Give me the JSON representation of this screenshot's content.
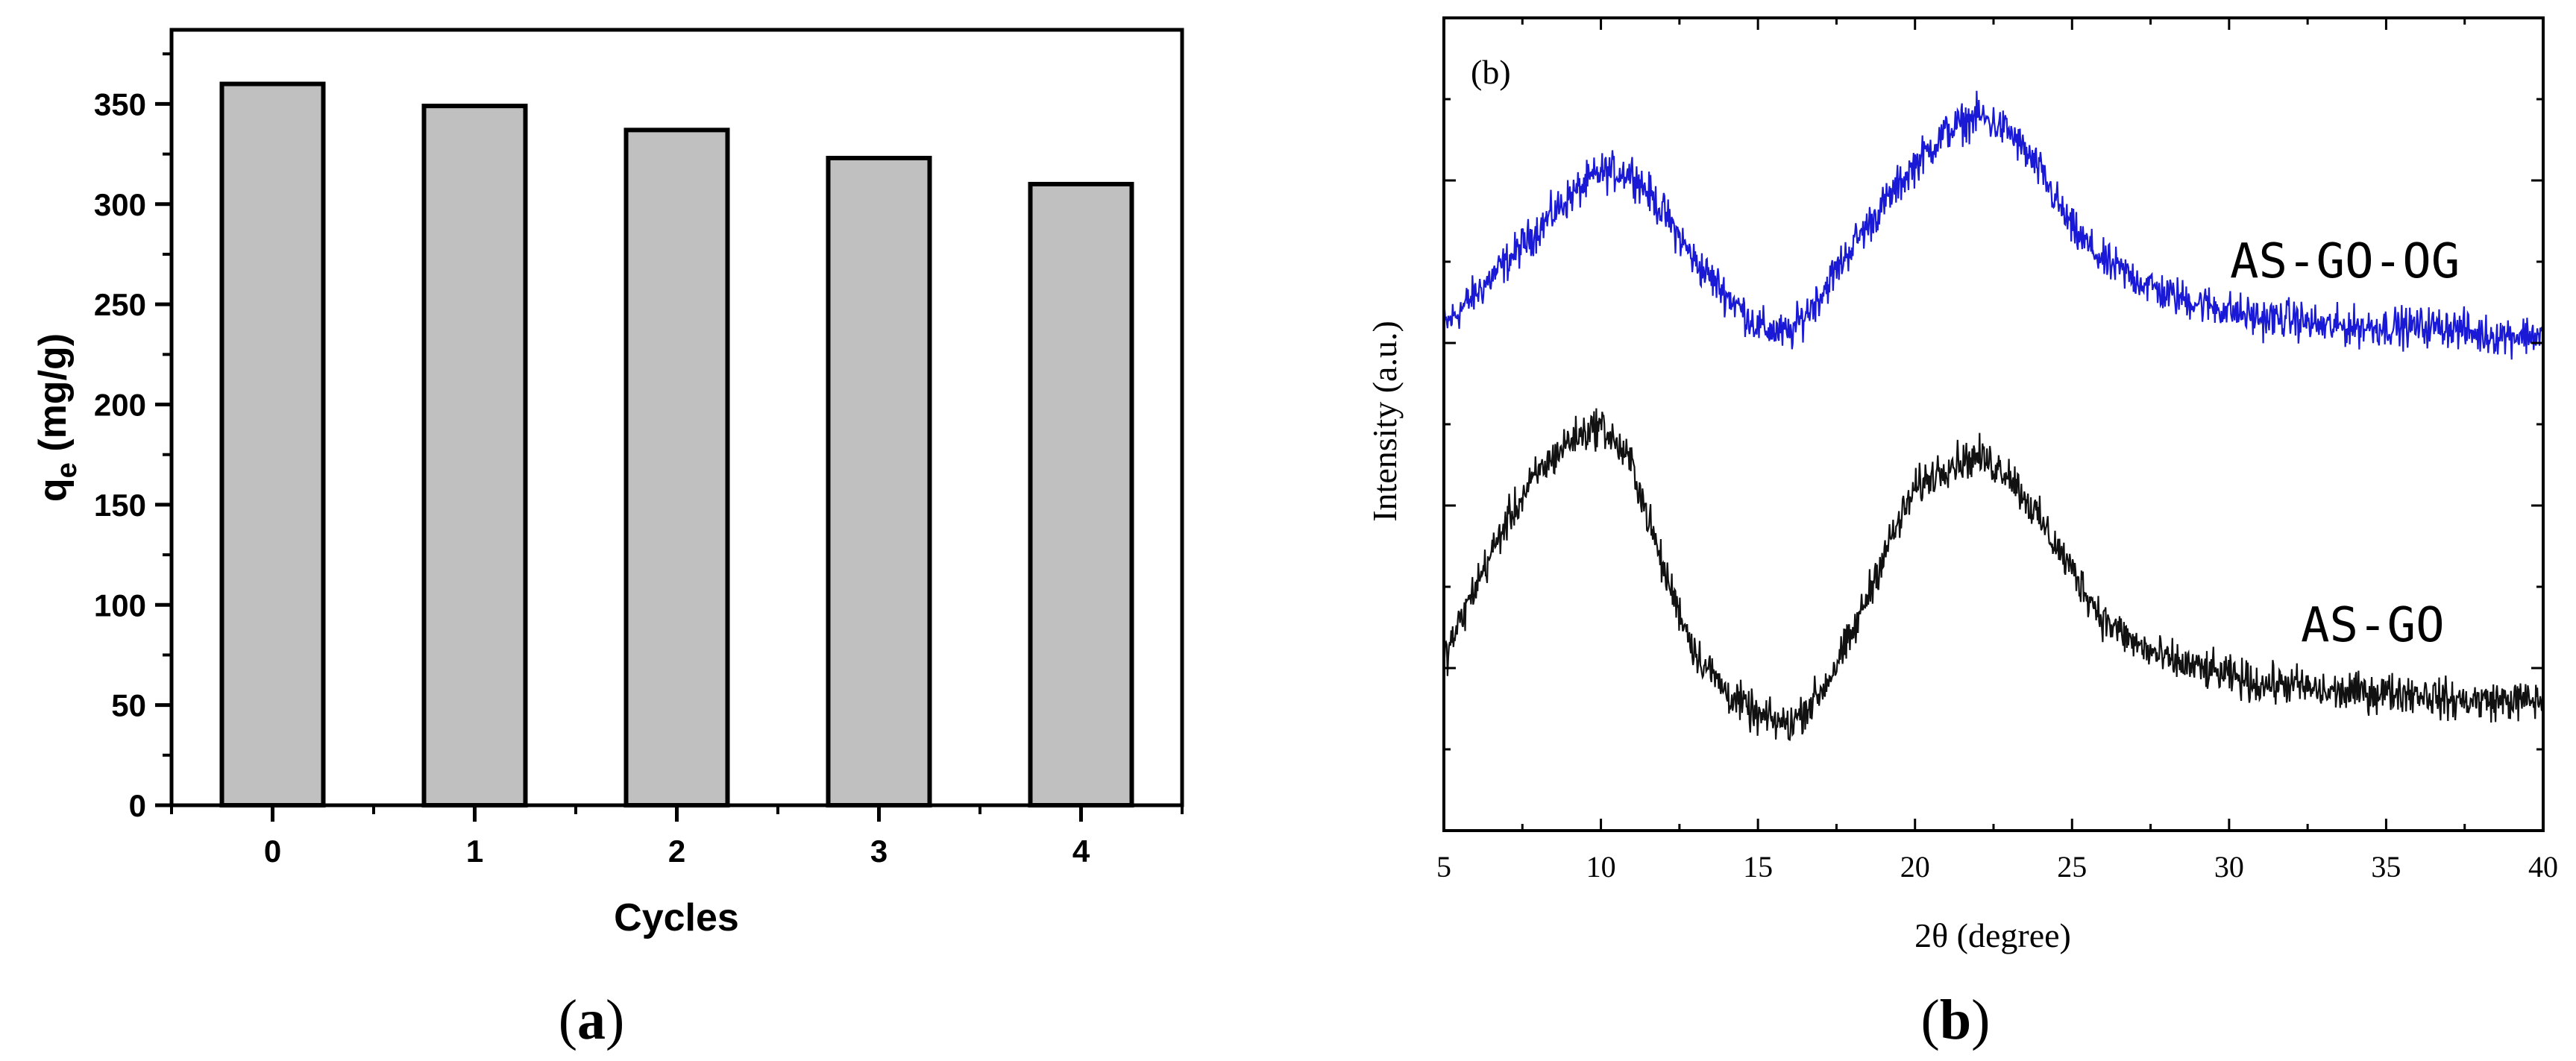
{
  "chart_data": [
    {
      "type": "bar",
      "panel_label": "a",
      "title": "",
      "categories": [
        "0",
        "1",
        "2",
        "3",
        "4"
      ],
      "values": [
        360,
        349,
        337,
        323,
        310
      ],
      "xlabel": "Cycles",
      "ylabel_main": "q",
      "ylabel_sub": "e",
      "ylabel_unit": " (mg/g)",
      "ylim": [
        0,
        387
      ],
      "yticks": [
        0,
        50,
        100,
        150,
        200,
        250,
        300,
        350
      ],
      "bar_color": "#c0c0c0",
      "edge_color": "#000000",
      "grid": false
    },
    {
      "type": "line",
      "panel_label": "b",
      "inner_label": "(b)",
      "title": "",
      "xlabel": "2θ (degree)",
      "ylabel": "Intensity (a.u.)",
      "xlim": [
        5,
        40
      ],
      "xticks": [
        5,
        10,
        15,
        20,
        25,
        30,
        35,
        40
      ],
      "ylim": [
        0,
        100
      ],
      "yticks_shown": false,
      "grid": false,
      "series": [
        {
          "name": "AS-GO-OG",
          "color": "#1a1ad6",
          "x": [
            5,
            6,
            7,
            8,
            9,
            10,
            11,
            12,
            13,
            14,
            15,
            16,
            17,
            18,
            19,
            20,
            21,
            22,
            23,
            24,
            25,
            26,
            27,
            28,
            29,
            30,
            31,
            32,
            33,
            34,
            35,
            36,
            37,
            38,
            39,
            40
          ],
          "y": [
            62,
            66,
            70,
            74,
            78,
            81,
            81,
            76,
            70,
            66,
            62,
            61,
            66,
            72,
            77,
            82,
            86,
            88,
            86,
            81,
            74,
            70,
            68,
            66,
            65,
            64,
            63,
            63,
            62,
            62,
            62,
            62,
            62,
            61,
            61,
            61
          ]
        },
        {
          "name": "AS-GO",
          "color": "#111111",
          "x": [
            5,
            6,
            7,
            8,
            9,
            10,
            11,
            12,
            13,
            14,
            15,
            16,
            17,
            18,
            19,
            20,
            21,
            22,
            23,
            24,
            25,
            26,
            27,
            28,
            29,
            30,
            31,
            32,
            33,
            34,
            35,
            36,
            37,
            38,
            39,
            40
          ],
          "y": [
            21,
            30,
            38,
            44,
            48,
            50,
            45,
            32,
            22,
            17,
            14,
            13,
            17,
            24,
            34,
            42,
            45,
            46,
            44,
            38,
            32,
            26,
            23,
            21,
            20,
            19,
            18,
            18,
            17,
            17,
            17,
            17,
            16,
            16,
            16,
            16
          ]
        }
      ]
    }
  ]
}
